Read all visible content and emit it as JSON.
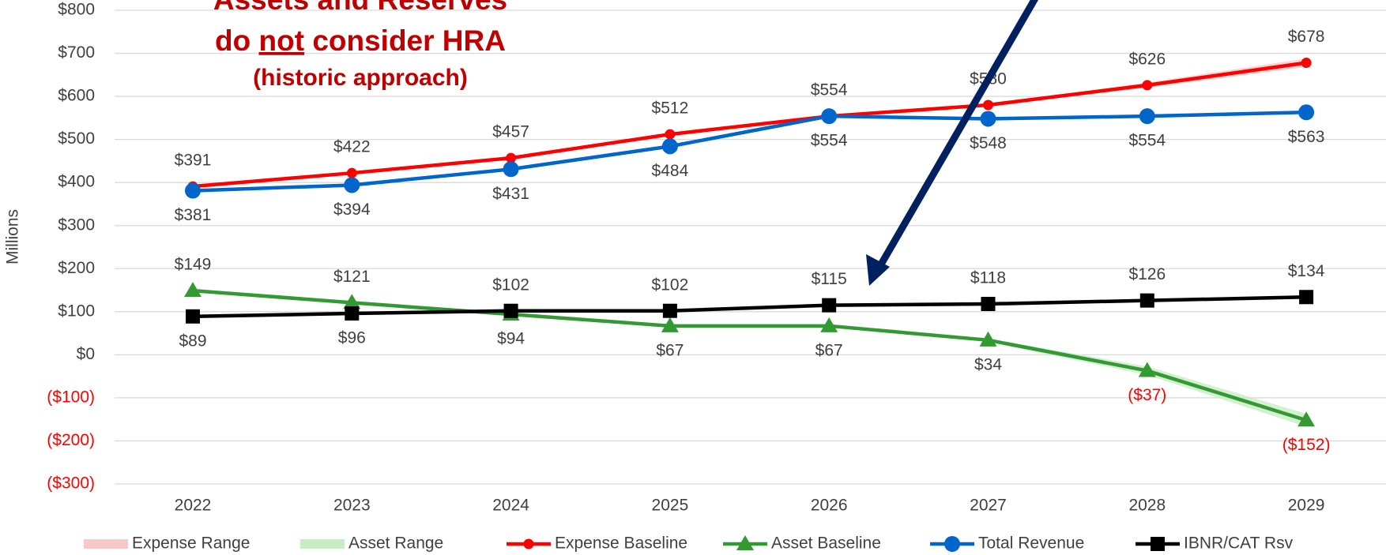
{
  "chart_data": {
    "type": "line",
    "annotation": {
      "line1": "Assets and Reserves",
      "line2": [
        "do",
        "not",
        "consider HRA"
      ],
      "subtitle": "(historic approach)"
    },
    "y_label": "Millions",
    "categories": [
      "2022",
      "2023",
      "2024",
      "2025",
      "2026",
      "2027",
      "2028",
      "2029"
    ],
    "ylim": [
      -300,
      800
    ],
    "yticks": [
      {
        "value": -300,
        "label": "($300)"
      },
      {
        "value": -200,
        "label": "($200)"
      },
      {
        "value": -100,
        "label": "($100)"
      },
      {
        "value": 0,
        "label": "$0"
      },
      {
        "value": 100,
        "label": "$100"
      },
      {
        "value": 200,
        "label": "$200"
      },
      {
        "value": 300,
        "label": "$300"
      },
      {
        "value": 400,
        "label": "$400"
      },
      {
        "value": 500,
        "label": "$500"
      },
      {
        "value": 600,
        "label": "$600"
      },
      {
        "value": 700,
        "label": "$700"
      },
      {
        "value": 800,
        "label": "$800"
      }
    ],
    "grid": true,
    "legend": "bottom",
    "series": [
      {
        "name": "Expense Range",
        "color": "#f8c8c8",
        "low": [
          391,
          422,
          457,
          512,
          554,
          578,
          620,
          668
        ],
        "high": [
          391,
          422,
          457,
          512,
          554,
          582,
          632,
          688
        ]
      },
      {
        "name": "Asset Range",
        "color": "#c8ecc4",
        "low": [
          149,
          121,
          94,
          67,
          67,
          30,
          -47,
          -167
        ],
        "high": [
          149,
          121,
          94,
          67,
          67,
          38,
          -27,
          -137
        ]
      },
      {
        "name": "Expense Baseline",
        "color": "#ff0000",
        "marker": "circle-small",
        "values": [
          391,
          422,
          457,
          512,
          554,
          580,
          626,
          678
        ],
        "value_labels": [
          "$391",
          "$422",
          "$457",
          "$512",
          "$554",
          "$580",
          "$626",
          "$678"
        ]
      },
      {
        "name": "Asset Baseline",
        "color": "#339933",
        "marker": "triangle",
        "values": [
          149,
          121,
          94,
          67,
          67,
          34,
          -37,
          -152
        ],
        "value_labels": [
          "$149",
          "$121",
          "$94",
          "$67",
          "$67",
          "$34",
          "($37)",
          "($152)"
        ]
      },
      {
        "name": "Total Revenue",
        "color": "#0066cc",
        "marker": "circle",
        "values": [
          381,
          394,
          431,
          484,
          554,
          548,
          554,
          563
        ],
        "value_labels": [
          "$381",
          "$394",
          "$431",
          "$484",
          "$554",
          "$548",
          "$554",
          "$563"
        ]
      },
      {
        "name": "IBNR/CAT Rsv",
        "color": "#000000",
        "marker": "square",
        "values": [
          89,
          96,
          102,
          102,
          115,
          118,
          126,
          134
        ],
        "value_labels": [
          "$89",
          "$96",
          "$102",
          "$102",
          "$115",
          "$118",
          "$126",
          "$134"
        ]
      }
    ]
  }
}
